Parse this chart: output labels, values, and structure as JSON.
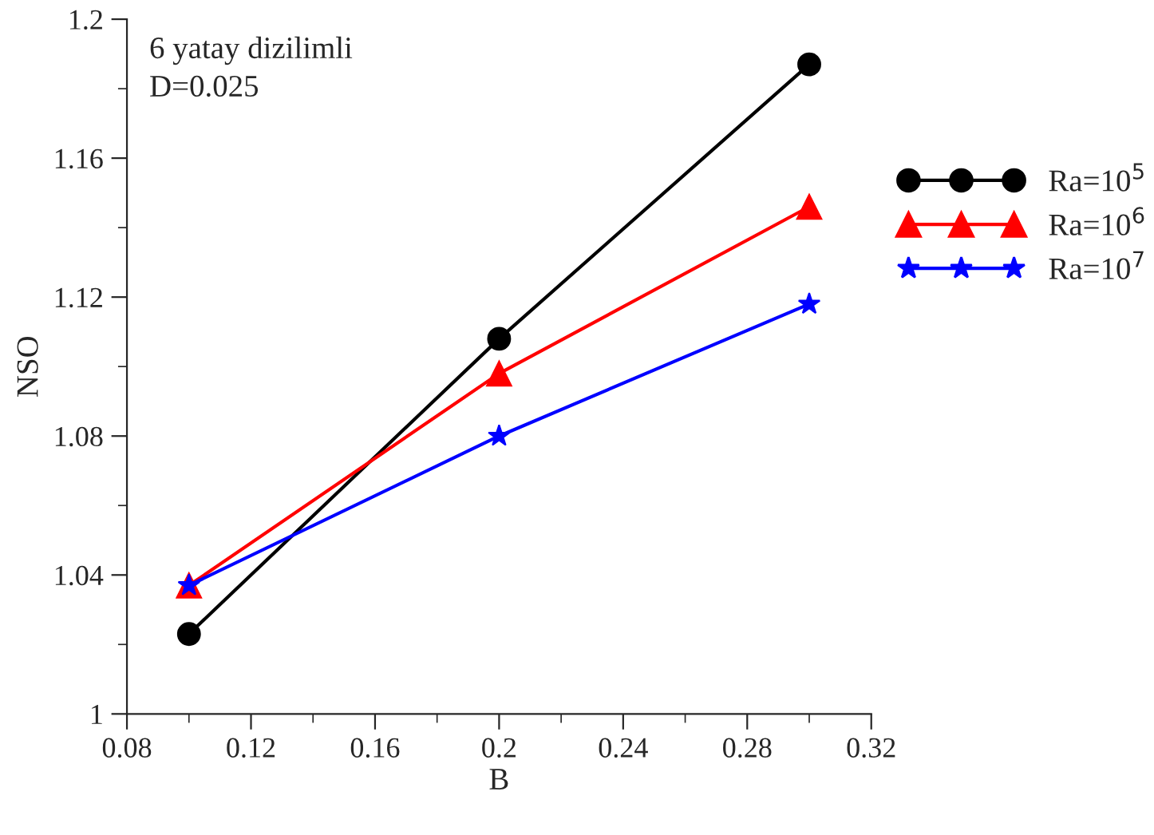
{
  "chart_data": {
    "type": "line",
    "xlabel": "B",
    "ylabel": "NSO",
    "annotations": [
      "6 yatay dizilimli",
      "D=0.025"
    ],
    "x": [
      0.1,
      0.2,
      0.3
    ],
    "series": [
      {
        "name": "Ra=10$^{5}$",
        "color": "#000000",
        "marker": "circle",
        "values": [
          1.023,
          1.108,
          1.187
        ]
      },
      {
        "name": "Ra=10$^{6}$",
        "color": "#ff0000",
        "marker": "triangle",
        "values": [
          1.037,
          1.098,
          1.146
        ]
      },
      {
        "name": "Ra=10$^{7}$",
        "color": "#0000ff",
        "marker": "star",
        "values": [
          1.037,
          1.08,
          1.118
        ]
      }
    ],
    "xlim": [
      0.08,
      0.32
    ],
    "xticks": [
      0.08,
      0.12,
      0.16,
      0.2,
      0.24,
      0.28,
      0.32
    ],
    "ylim": [
      1,
      1.2
    ],
    "yticks": [
      1,
      1.04,
      1.08,
      1.12,
      1.16,
      1.2
    ],
    "grid": false,
    "legend": "right",
    "line_style": "solid"
  }
}
